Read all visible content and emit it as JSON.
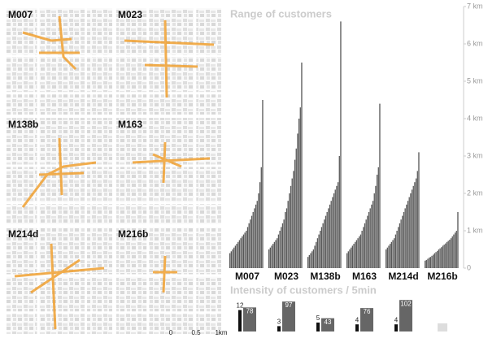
{
  "maps": {
    "labels": [
      "M007",
      "M023",
      "M138b",
      "M163",
      "M214d",
      "M216b"
    ],
    "scale_bar": [
      "0",
      "0.5",
      "1km"
    ]
  },
  "chart_data": [
    {
      "type": "bar",
      "title": "Range of customers",
      "categories": [
        "M007",
        "M023",
        "M138b",
        "M163",
        "M214d",
        "M216b"
      ],
      "values": [
        [
          0.4,
          0.45,
          0.5,
          0.55,
          0.6,
          0.65,
          0.7,
          0.75,
          0.8,
          0.85,
          0.9,
          0.95,
          1.0,
          1.1,
          1.2,
          1.3,
          1.4,
          1.5,
          1.6,
          1.7,
          1.8,
          2.0,
          2.3,
          2.7,
          4.5
        ],
        [
          0.5,
          0.55,
          0.6,
          0.65,
          0.7,
          0.75,
          0.8,
          0.9,
          1.0,
          1.1,
          1.2,
          1.3,
          1.5,
          1.6,
          1.8,
          2.0,
          2.2,
          2.4,
          2.6,
          2.9,
          3.2,
          3.6,
          4.0,
          4.3,
          5.5
        ],
        [
          0.3,
          0.35,
          0.4,
          0.45,
          0.5,
          0.6,
          0.7,
          0.8,
          0.9,
          1.0,
          1.1,
          1.2,
          1.3,
          1.4,
          1.5,
          1.6,
          1.7,
          1.8,
          1.9,
          2.0,
          2.1,
          2.2,
          2.3,
          3.0,
          6.6
        ],
        [
          0.4,
          0.45,
          0.5,
          0.55,
          0.6,
          0.65,
          0.7,
          0.75,
          0.8,
          0.85,
          0.9,
          1.0,
          1.1,
          1.2,
          1.3,
          1.4,
          1.5,
          1.6,
          1.7,
          1.8,
          2.0,
          2.2,
          2.5,
          2.7,
          4.4
        ],
        [
          0.5,
          0.55,
          0.6,
          0.65,
          0.7,
          0.75,
          0.8,
          0.9,
          1.0,
          1.1,
          1.2,
          1.3,
          1.4,
          1.5,
          1.6,
          1.7,
          1.8,
          1.9,
          2.0,
          2.1,
          2.2,
          2.3,
          2.4,
          2.6,
          3.1
        ],
        [
          0.2,
          0.22,
          0.25,
          0.28,
          0.3,
          0.33,
          0.36,
          0.4,
          0.43,
          0.46,
          0.5,
          0.53,
          0.56,
          0.6,
          0.63,
          0.66,
          0.7,
          0.73,
          0.76,
          0.8,
          0.85,
          0.9,
          0.95,
          1.0,
          1.5
        ]
      ],
      "color": "#555",
      "ylim": [
        0,
        7
      ],
      "yticks": [
        0,
        {
          "value": 1,
          "label": "1 km"
        },
        {
          "value": 2,
          "label": "2 km"
        },
        {
          "value": 3,
          "label": "3 km"
        },
        {
          "value": 4,
          "label": "4 km"
        },
        {
          "value": 5,
          "label": "5 km"
        },
        {
          "value": 6,
          "label": "6 km"
        },
        {
          "value": 7,
          "label": "7 km"
        }
      ]
    },
    {
      "type": "bar",
      "title": "Intensity of customers / 5min",
      "series": [
        {
          "color": "#111",
          "values": [
            12,
            3,
            5,
            4,
            4,
            null
          ]
        },
        {
          "color": "#666",
          "values": [
            78,
            97,
            43,
            76,
            102,
            null
          ]
        }
      ]
    }
  ]
}
